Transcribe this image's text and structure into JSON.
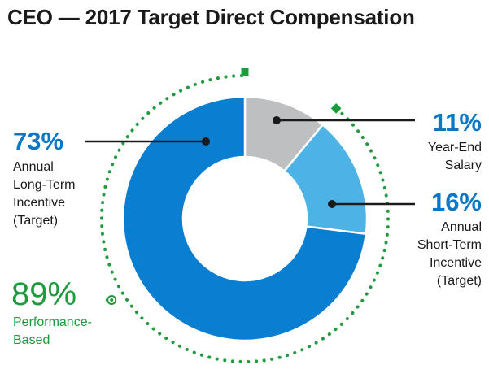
{
  "colors": {
    "salary": "#bebfc1",
    "short_term": "#4db3e6",
    "long_term": "#0a7fd2",
    "performance": "#1e9b3c",
    "label_blue": "#0b77c7",
    "line": "#1a1a1a"
  },
  "title": "CEO — 2017 Target Direct Compensation",
  "chart_data": {
    "type": "pie",
    "categories": [
      "Year-End Salary",
      "Annual Short-Term Incentive (Target)",
      "Annual Long-Term Incentive (Target)"
    ],
    "values": [
      11,
      16,
      73
    ],
    "value_labels": [
      "11%",
      "16%",
      "73%"
    ],
    "slice_labels": [
      "Year-End\nSalary",
      "Annual\nShort-Term\nIncentive\n(Target)",
      "Annual\nLong-Term\nIncentive\n(Target)"
    ],
    "annotation": {
      "value": 89,
      "value_label": "89%",
      "label": "Performance-\nBased",
      "spans": [
        "Annual Short-Term Incentive (Target)",
        "Annual Long-Term Incentive (Target)"
      ]
    }
  }
}
